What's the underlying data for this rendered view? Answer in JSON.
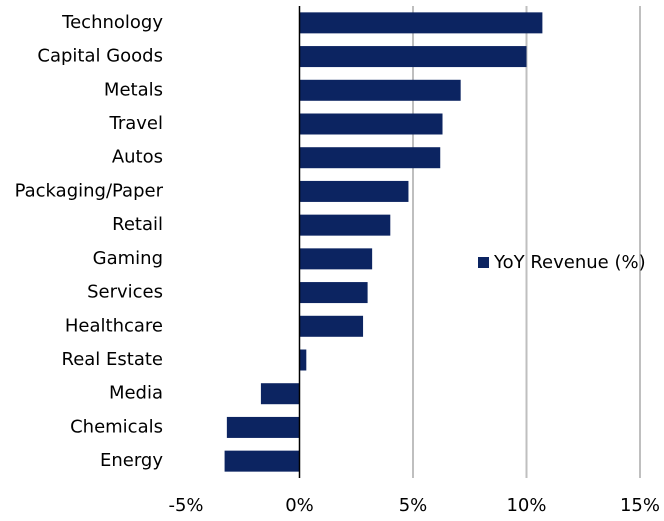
{
  "chart_data": {
    "type": "bar",
    "orientation": "horizontal",
    "categories": [
      "Technology",
      "Capital Goods",
      "Metals",
      "Travel",
      "Autos",
      "Packaging/Paper",
      "Retail",
      "Gaming",
      "Services",
      "Healthcare",
      "Real Estate",
      "Media",
      "Chemicals",
      "Energy"
    ],
    "series": [
      {
        "name": "YoY Revenue (%)",
        "color": "#0c2461",
        "values": [
          10.7,
          10.0,
          7.1,
          6.3,
          6.2,
          4.8,
          4.0,
          3.2,
          3.0,
          2.8,
          0.3,
          -1.7,
          -3.2,
          -3.3
        ]
      }
    ],
    "xlim": [
      -5,
      15
    ],
    "xticks": [
      {
        "value": -5,
        "label": "-5%"
      },
      {
        "value": 0,
        "label": "0%"
      },
      {
        "value": 5,
        "label": "5%"
      },
      {
        "value": 10,
        "label": "10%"
      },
      {
        "value": 15,
        "label": "15%"
      }
    ],
    "grid": true,
    "legend": "right"
  }
}
